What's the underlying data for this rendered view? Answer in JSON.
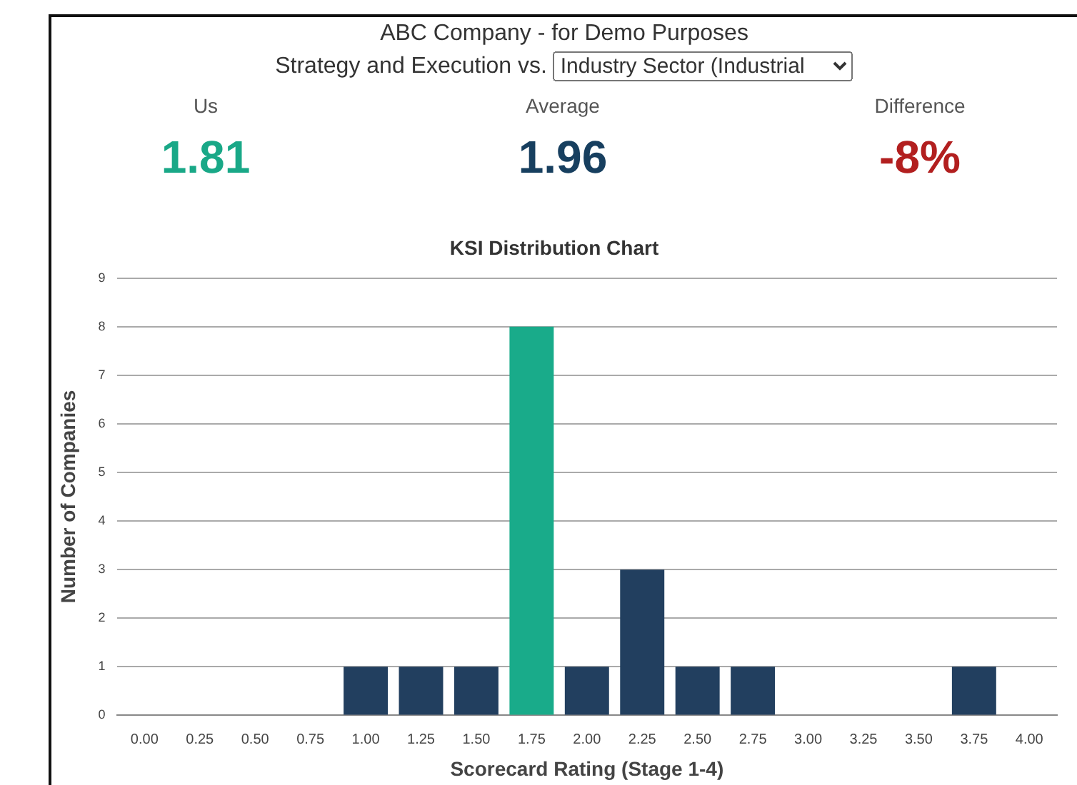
{
  "chart_data": [
    {
      "type": "other",
      "title": "ABC Company - for Demo Purposes",
      "subtitle": "Strategy and Execution vs.",
      "annotations": [
        "Industry Sector (Industrial",
        "Us",
        "1.81",
        "Average",
        "1.96",
        "Difference",
        "-8%"
      ],
      "colors": [
        "#333333",
        "#555555",
        "#19a887",
        "#555555",
        "#173f5f",
        "#555555",
        "#b21f1f"
      ]
    },
    {
      "type": "bar",
      "title": "KSI Distribution Chart",
      "xlabel": "Scorecard Rating (Stage 1-4)",
      "ylabel": "Number of Companies",
      "categories": [
        "0.00",
        "0.25",
        "0.50",
        "0.75",
        "1.00",
        "1.25",
        "1.50",
        "1.75",
        "2.00",
        "2.25",
        "2.50",
        "2.75",
        "3.00",
        "3.25",
        "3.50",
        "3.75",
        "4.00"
      ],
      "values": [
        0,
        0,
        0,
        0,
        1,
        1,
        1,
        8,
        1,
        3,
        1,
        1,
        0,
        0,
        0,
        1,
        0
      ],
      "colors": [
        "#223f5f",
        "#223f5f",
        "#223f5f",
        "#223f5f",
        "#223f5f",
        "#223f5f",
        "#223f5f",
        "#19ab8a",
        "#223f5f",
        "#223f5f",
        "#223f5f",
        "#223f5f",
        "#223f5f",
        "#223f5f",
        "#223f5f",
        "#223f5f",
        "#223f5f"
      ],
      "ylim": [
        0,
        9
      ],
      "yticks": [
        0,
        1,
        2,
        3,
        4,
        5,
        6,
        7,
        8,
        9
      ],
      "grid": "y",
      "legend": false
    }
  ]
}
